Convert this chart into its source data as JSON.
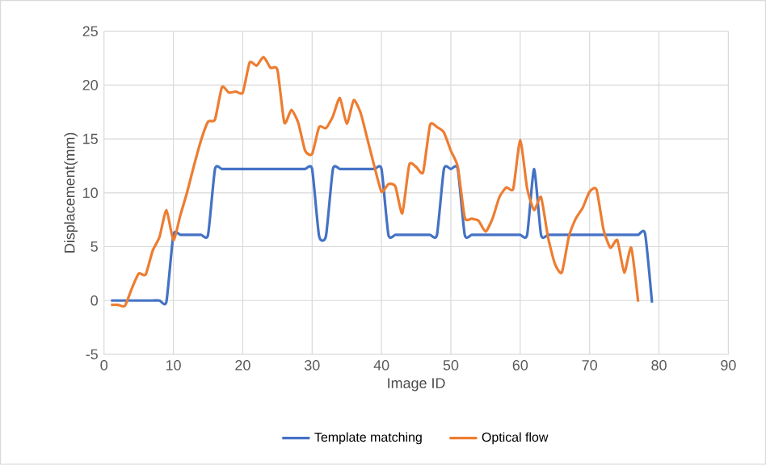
{
  "chart_data": {
    "type": "line",
    "xlabel": "Image ID",
    "ylabel": "Displacement(mm)",
    "xlim": [
      0,
      90
    ],
    "xticks": [
      0,
      10,
      20,
      30,
      40,
      50,
      60,
      70,
      80,
      90
    ],
    "ylim": [
      -5,
      25
    ],
    "yticks": [
      -5,
      0,
      5,
      10,
      15,
      20,
      25
    ],
    "grid": true,
    "legend": "bottom",
    "series": [
      {
        "name": "Template matching",
        "color": "#4472c4",
        "x": [
          1,
          2,
          3,
          4,
          5,
          6,
          7,
          8,
          9,
          10,
          11,
          12,
          13,
          14,
          15,
          16,
          17,
          18,
          19,
          20,
          21,
          22,
          23,
          24,
          25,
          26,
          27,
          28,
          29,
          30,
          31,
          32,
          33,
          34,
          35,
          36,
          37,
          38,
          39,
          40,
          41,
          42,
          43,
          44,
          45,
          46,
          47,
          48,
          49,
          50,
          51,
          52,
          53,
          54,
          55,
          56,
          57,
          58,
          59,
          60,
          61,
          62,
          63,
          64,
          65,
          66,
          67,
          68,
          69,
          70,
          71,
          72,
          73,
          74,
          75,
          76,
          77,
          78,
          79
        ],
        "values": [
          0,
          0,
          0,
          0,
          0,
          0,
          0,
          0,
          -0.1,
          6.1,
          6.1,
          6.1,
          6.1,
          6.1,
          6.1,
          12.2,
          12.2,
          12.2,
          12.2,
          12.2,
          12.2,
          12.2,
          12.2,
          12.2,
          12.2,
          12.2,
          12.2,
          12.2,
          12.2,
          12.2,
          6,
          6,
          12.2,
          12.2,
          12.2,
          12.2,
          12.2,
          12.2,
          12.2,
          12.2,
          6.1,
          6.1,
          6.1,
          6.1,
          6.1,
          6.1,
          6.1,
          6.1,
          12.2,
          12.2,
          12.2,
          6.1,
          6.1,
          6.1,
          6.1,
          6.1,
          6.1,
          6.1,
          6.1,
          6.1,
          6.1,
          12.2,
          6.1,
          6.1,
          6.1,
          6.1,
          6.1,
          6.1,
          6.1,
          6.1,
          6.1,
          6.1,
          6.1,
          6.1,
          6.1,
          6.1,
          6.1,
          6.2,
          -0.2
        ]
      },
      {
        "name": "Optical flow",
        "color": "#ed7d31",
        "x": [
          1,
          2,
          3,
          4,
          5,
          6,
          7,
          8,
          9,
          10,
          11,
          12,
          13,
          14,
          15,
          16,
          17,
          18,
          19,
          20,
          21,
          22,
          23,
          24,
          25,
          26,
          27,
          28,
          29,
          30,
          31,
          32,
          33,
          34,
          35,
          36,
          37,
          38,
          39,
          40,
          41,
          42,
          43,
          44,
          45,
          46,
          47,
          48,
          49,
          50,
          51,
          52,
          53,
          54,
          55,
          56,
          57,
          58,
          59,
          60,
          61,
          62,
          63,
          64,
          65,
          66,
          67,
          68,
          69,
          70,
          71,
          72,
          73,
          74,
          75,
          76,
          77
        ],
        "values": [
          -0.4,
          -0.4,
          -0.5,
          1.1,
          2.5,
          2.4,
          4.6,
          5.9,
          8.4,
          5.6,
          7.9,
          10.1,
          12.6,
          14.9,
          16.6,
          16.8,
          19.8,
          19.3,
          19.4,
          19.3,
          22.1,
          21.8,
          22.6,
          21.6,
          21.4,
          16.5,
          17.7,
          16.5,
          13.9,
          13.6,
          16.1,
          16.0,
          17.1,
          18.8,
          16.4,
          18.6,
          17.4,
          14.9,
          12.4,
          10.1,
          10.8,
          10.6,
          8.1,
          12.6,
          12.4,
          11.9,
          16.3,
          16.1,
          15.6,
          13.9,
          12.4,
          7.7,
          7.6,
          7.4,
          6.4,
          7.6,
          9.6,
          10.5,
          10.4,
          14.9,
          10.4,
          8.4,
          9.6,
          5.9,
          3.4,
          2.6,
          5.9,
          7.6,
          8.6,
          10.1,
          10.3,
          6.6,
          4.9,
          5.6,
          2.6,
          4.9,
          -0.1
        ]
      }
    ]
  }
}
